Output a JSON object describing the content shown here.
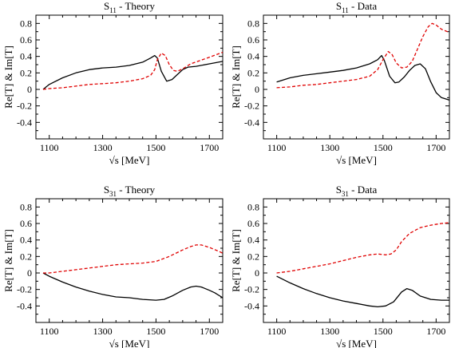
{
  "chart_data": [
    {
      "type": "line",
      "title_main": "S",
      "title_sub": "11",
      "title_rest": "  - Theory",
      "xlabel": "√s  [MeV]",
      "ylabel": "Re[T] & Im[T]",
      "xlim": [
        1050,
        1750
      ],
      "ylim": [
        -0.6,
        0.9
      ],
      "xticks": [
        1100,
        1300,
        1500,
        1700
      ],
      "yticks": [
        0.8,
        0.6,
        0.4,
        0.2,
        0,
        -0.2,
        -0.4
      ],
      "grid": false,
      "series": [
        {
          "style": "solid",
          "color": "#000000",
          "points": [
            [
              1077,
              0.0
            ],
            [
              1100,
              0.06
            ],
            [
              1150,
              0.14
            ],
            [
              1200,
              0.2
            ],
            [
              1250,
              0.24
            ],
            [
              1300,
              0.26
            ],
            [
              1350,
              0.27
            ],
            [
              1400,
              0.29
            ],
            [
              1450,
              0.33
            ],
            [
              1480,
              0.38
            ],
            [
              1495,
              0.41
            ],
            [
              1505,
              0.38
            ],
            [
              1520,
              0.22
            ],
            [
              1540,
              0.1
            ],
            [
              1560,
              0.12
            ],
            [
              1580,
              0.18
            ],
            [
              1600,
              0.24
            ],
            [
              1620,
              0.27
            ],
            [
              1650,
              0.28
            ],
            [
              1700,
              0.31
            ],
            [
              1750,
              0.34
            ]
          ]
        },
        {
          "style": "dashed",
          "color": "#e00000",
          "points": [
            [
              1077,
              0.0
            ],
            [
              1100,
              0.01
            ],
            [
              1150,
              0.02
            ],
            [
              1200,
              0.04
            ],
            [
              1250,
              0.06
            ],
            [
              1300,
              0.07
            ],
            [
              1350,
              0.08
            ],
            [
              1400,
              0.1
            ],
            [
              1450,
              0.13
            ],
            [
              1480,
              0.17
            ],
            [
              1495,
              0.24
            ],
            [
              1505,
              0.36
            ],
            [
              1520,
              0.44
            ],
            [
              1535,
              0.41
            ],
            [
              1550,
              0.3
            ],
            [
              1565,
              0.23
            ],
            [
              1580,
              0.22
            ],
            [
              1600,
              0.25
            ],
            [
              1630,
              0.31
            ],
            [
              1700,
              0.39
            ],
            [
              1750,
              0.45
            ]
          ]
        }
      ]
    },
    {
      "type": "line",
      "title_main": "S",
      "title_sub": "11",
      "title_rest": "  - Data",
      "xlabel": "√s  [MeV]",
      "ylabel": "Re[T] & Im[T]",
      "xlim": [
        1050,
        1750
      ],
      "ylim": [
        -0.6,
        0.9
      ],
      "xticks": [
        1100,
        1300,
        1500,
        1700
      ],
      "yticks": [
        0.8,
        0.6,
        0.4,
        0.2,
        0,
        -0.2,
        -0.4
      ],
      "grid": false,
      "series": [
        {
          "style": "solid",
          "color": "#000000",
          "points": [
            [
              1100,
              0.09
            ],
            [
              1150,
              0.14
            ],
            [
              1200,
              0.17
            ],
            [
              1250,
              0.19
            ],
            [
              1300,
              0.21
            ],
            [
              1350,
              0.23
            ],
            [
              1400,
              0.26
            ],
            [
              1450,
              0.31
            ],
            [
              1480,
              0.36
            ],
            [
              1495,
              0.41
            ],
            [
              1505,
              0.35
            ],
            [
              1525,
              0.16
            ],
            [
              1545,
              0.08
            ],
            [
              1560,
              0.09
            ],
            [
              1580,
              0.15
            ],
            [
              1600,
              0.23
            ],
            [
              1620,
              0.29
            ],
            [
              1640,
              0.31
            ],
            [
              1660,
              0.25
            ],
            [
              1680,
              0.09
            ],
            [
              1700,
              -0.04
            ],
            [
              1720,
              -0.1
            ],
            [
              1750,
              -0.13
            ]
          ]
        },
        {
          "style": "dashed",
          "color": "#e00000",
          "points": [
            [
              1100,
              0.02
            ],
            [
              1150,
              0.03
            ],
            [
              1200,
              0.05
            ],
            [
              1250,
              0.06
            ],
            [
              1300,
              0.08
            ],
            [
              1350,
              0.1
            ],
            [
              1400,
              0.12
            ],
            [
              1450,
              0.16
            ],
            [
              1480,
              0.24
            ],
            [
              1500,
              0.36
            ],
            [
              1520,
              0.46
            ],
            [
              1535,
              0.42
            ],
            [
              1550,
              0.32
            ],
            [
              1570,
              0.26
            ],
            [
              1590,
              0.27
            ],
            [
              1610,
              0.34
            ],
            [
              1630,
              0.49
            ],
            [
              1650,
              0.64
            ],
            [
              1670,
              0.76
            ],
            [
              1685,
              0.8
            ],
            [
              1700,
              0.78
            ],
            [
              1720,
              0.73
            ],
            [
              1750,
              0.69
            ]
          ]
        }
      ]
    },
    {
      "type": "line",
      "title_main": "S",
      "title_sub": "31",
      "title_rest": "  - Theory",
      "xlabel": "√s  [MeV]",
      "ylabel": "Re[T] & Im[T]",
      "xlim": [
        1050,
        1750
      ],
      "ylim": [
        -0.6,
        0.9
      ],
      "xticks": [
        1100,
        1300,
        1500,
        1700
      ],
      "yticks": [
        0.8,
        0.6,
        0.4,
        0.2,
        0,
        -0.2,
        -0.4
      ],
      "grid": false,
      "series": [
        {
          "style": "solid",
          "color": "#000000",
          "points": [
            [
              1077,
              0.0
            ],
            [
              1100,
              -0.04
            ],
            [
              1150,
              -0.11
            ],
            [
              1200,
              -0.17
            ],
            [
              1250,
              -0.22
            ],
            [
              1300,
              -0.26
            ],
            [
              1350,
              -0.29
            ],
            [
              1400,
              -0.3
            ],
            [
              1450,
              -0.32
            ],
            [
              1500,
              -0.33
            ],
            [
              1530,
              -0.32
            ],
            [
              1560,
              -0.28
            ],
            [
              1600,
              -0.21
            ],
            [
              1630,
              -0.17
            ],
            [
              1650,
              -0.16
            ],
            [
              1670,
              -0.17
            ],
            [
              1700,
              -0.21
            ],
            [
              1720,
              -0.24
            ],
            [
              1750,
              -0.3
            ]
          ]
        },
        {
          "style": "dashed",
          "color": "#e00000",
          "points": [
            [
              1077,
              0.0
            ],
            [
              1100,
              0.0
            ],
            [
              1150,
              0.02
            ],
            [
              1200,
              0.04
            ],
            [
              1250,
              0.06
            ],
            [
              1300,
              0.08
            ],
            [
              1350,
              0.1
            ],
            [
              1400,
              0.11
            ],
            [
              1450,
              0.12
            ],
            [
              1500,
              0.14
            ],
            [
              1550,
              0.2
            ],
            [
              1600,
              0.28
            ],
            [
              1630,
              0.32
            ],
            [
              1650,
              0.34
            ],
            [
              1670,
              0.34
            ],
            [
              1700,
              0.31
            ],
            [
              1730,
              0.27
            ],
            [
              1750,
              0.24
            ]
          ]
        }
      ]
    },
    {
      "type": "line",
      "title_main": "S",
      "title_sub": "31",
      "title_rest": "  - Data",
      "xlabel": "√s  [MeV]",
      "ylabel": "Re[T] & Im[T]",
      "xlim": [
        1050,
        1750
      ],
      "ylim": [
        -0.6,
        0.9
      ],
      "xticks": [
        1100,
        1300,
        1500,
        1700
      ],
      "yticks": [
        0.8,
        0.6,
        0.4,
        0.2,
        0,
        -0.2,
        -0.4
      ],
      "grid": false,
      "series": [
        {
          "style": "solid",
          "color": "#000000",
          "points": [
            [
              1100,
              -0.04
            ],
            [
              1150,
              -0.12
            ],
            [
              1200,
              -0.19
            ],
            [
              1250,
              -0.25
            ],
            [
              1300,
              -0.3
            ],
            [
              1350,
              -0.34
            ],
            [
              1400,
              -0.37
            ],
            [
              1450,
              -0.4
            ],
            [
              1480,
              -0.41
            ],
            [
              1510,
              -0.4
            ],
            [
              1540,
              -0.35
            ],
            [
              1570,
              -0.23
            ],
            [
              1590,
              -0.19
            ],
            [
              1610,
              -0.21
            ],
            [
              1640,
              -0.28
            ],
            [
              1680,
              -0.32
            ],
            [
              1720,
              -0.33
            ],
            [
              1750,
              -0.33
            ]
          ]
        },
        {
          "style": "dashed",
          "color": "#e00000",
          "points": [
            [
              1100,
              0.0
            ],
            [
              1150,
              0.02
            ],
            [
              1200,
              0.05
            ],
            [
              1250,
              0.08
            ],
            [
              1300,
              0.11
            ],
            [
              1350,
              0.15
            ],
            [
              1400,
              0.19
            ],
            [
              1450,
              0.22
            ],
            [
              1480,
              0.23
            ],
            [
              1510,
              0.22
            ],
            [
              1530,
              0.23
            ],
            [
              1550,
              0.28
            ],
            [
              1570,
              0.38
            ],
            [
              1600,
              0.48
            ],
            [
              1640,
              0.55
            ],
            [
              1680,
              0.58
            ],
            [
              1720,
              0.6
            ],
            [
              1750,
              0.61
            ]
          ]
        }
      ]
    }
  ]
}
